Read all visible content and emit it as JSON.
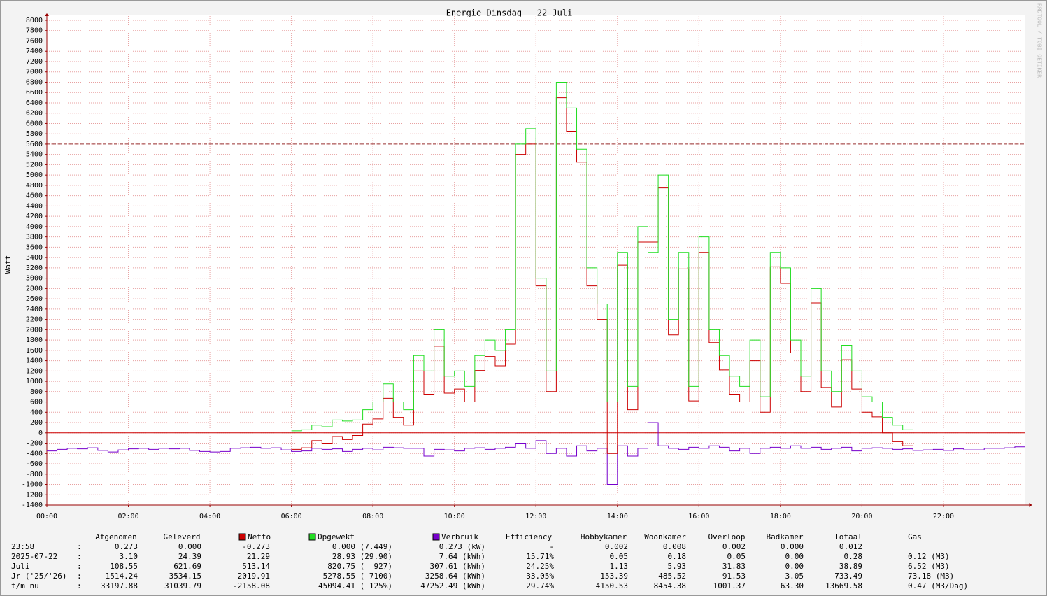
{
  "chart_data": {
    "type": "step-line",
    "title": "Energie Dinsdag   22 Juli",
    "y_label": "Watt",
    "watermark": "RRDTOOL / TOBI OETIKER",
    "xlim": [
      0,
      24
    ],
    "xticks": [
      {
        "value": 0,
        "label": "00:00"
      },
      {
        "value": 2,
        "label": "02:00"
      },
      {
        "value": 4,
        "label": "04:00"
      },
      {
        "value": 6,
        "label": "06:00"
      },
      {
        "value": 8,
        "label": "08:00"
      },
      {
        "value": 10,
        "label": "10:00"
      },
      {
        "value": 12,
        "label": "12:00"
      },
      {
        "value": 14,
        "label": "14:00"
      },
      {
        "value": 16,
        "label": "16:00"
      },
      {
        "value": 18,
        "label": "18:00"
      },
      {
        "value": 20,
        "label": "20:00"
      },
      {
        "value": 22,
        "label": "22:00"
      }
    ],
    "ylim": [
      -1400,
      8000
    ],
    "yticks": [
      -1400,
      -1200,
      -1000,
      -800,
      -600,
      -400,
      -200,
      0,
      200,
      400,
      600,
      800,
      1000,
      1200,
      1400,
      1600,
      1800,
      2000,
      2200,
      2400,
      2600,
      2800,
      3000,
      3200,
      3400,
      3600,
      3800,
      4000,
      4200,
      4400,
      4600,
      4800,
      5000,
      5200,
      5400,
      5600,
      5800,
      6000,
      6200,
      6400,
      6600,
      6800,
      7000,
      7200,
      7400,
      7600,
      7800,
      8000
    ],
    "grid": true,
    "hrule": 5600,
    "x": [
      0,
      0.25,
      0.5,
      0.75,
      1,
      1.25,
      1.5,
      1.75,
      2,
      2.25,
      2.5,
      2.75,
      3,
      3.25,
      3.5,
      3.75,
      4,
      4.25,
      4.5,
      4.75,
      5,
      5.25,
      5.5,
      5.75,
      6,
      6.25,
      6.5,
      6.75,
      7,
      7.25,
      7.5,
      7.75,
      8,
      8.25,
      8.5,
      8.75,
      9,
      9.25,
      9.5,
      9.75,
      10,
      10.25,
      10.5,
      10.75,
      11,
      11.25,
      11.5,
      11.75,
      12,
      12.25,
      12.5,
      12.75,
      13,
      13.25,
      13.5,
      13.75,
      14,
      14.25,
      14.5,
      14.75,
      15,
      15.25,
      15.5,
      15.75,
      16,
      16.25,
      16.5,
      16.75,
      17,
      17.25,
      17.5,
      17.75,
      18,
      18.25,
      18.5,
      18.75,
      19,
      19.25,
      19.5,
      19.75,
      20,
      20.25,
      20.5,
      20.75,
      21,
      21.25,
      21.5,
      21.75,
      22,
      22.25,
      22.5,
      22.75,
      23,
      23.25,
      23.5,
      23.75
    ],
    "series": [
      {
        "name": "Netto",
        "color": "#cc0000",
        "values": [
          null,
          null,
          null,
          null,
          null,
          null,
          null,
          null,
          null,
          null,
          null,
          null,
          null,
          null,
          null,
          null,
          null,
          null,
          null,
          null,
          null,
          null,
          null,
          null,
          -320,
          -290,
          -150,
          -200,
          -70,
          -130,
          -50,
          170,
          270,
          670,
          300,
          150,
          1200,
          750,
          1680,
          770,
          850,
          600,
          1210,
          1480,
          1300,
          1720,
          5400,
          5600,
          2850,
          800,
          6500,
          5850,
          5250,
          2850,
          2200,
          -400,
          3250,
          450,
          3700,
          3700,
          4750,
          1900,
          3180,
          620,
          3500,
          1750,
          1220,
          750,
          600,
          1400,
          400,
          3220,
          2900,
          1550,
          800,
          2520,
          880,
          500,
          1420,
          850,
          400,
          310,
          0,
          -170,
          -250,
          null,
          null,
          null,
          null,
          null,
          null,
          null,
          null,
          null,
          null,
          null
        ]
      },
      {
        "name": "Opgewekt",
        "color": "#22dd22",
        "values": [
          null,
          null,
          null,
          null,
          null,
          null,
          null,
          null,
          null,
          null,
          null,
          null,
          null,
          null,
          null,
          null,
          null,
          null,
          null,
          null,
          null,
          null,
          null,
          null,
          40,
          60,
          150,
          120,
          250,
          230,
          250,
          450,
          600,
          950,
          600,
          450,
          1500,
          1200,
          2000,
          1100,
          1200,
          900,
          1500,
          1800,
          1600,
          2000,
          5600,
          5900,
          3000,
          1200,
          6800,
          6300,
          5500,
          3200,
          2500,
          600,
          3500,
          900,
          4000,
          3500,
          5000,
          2200,
          3500,
          900,
          3800,
          2000,
          1500,
          1100,
          900,
          1800,
          700,
          3500,
          3200,
          1800,
          1100,
          2800,
          1200,
          800,
          1700,
          1200,
          700,
          600,
          300,
          150,
          60,
          null,
          null,
          null,
          null,
          null,
          null,
          null,
          null,
          null,
          null,
          null
        ]
      },
      {
        "name": "Verbruik",
        "color": "#7700cc",
        "values": [
          -350,
          -320,
          -300,
          -310,
          -290,
          -340,
          -370,
          -330,
          -310,
          -300,
          -320,
          -300,
          -310,
          -300,
          -340,
          -360,
          -370,
          -360,
          -300,
          -290,
          -280,
          -300,
          -290,
          -330,
          -360,
          -350,
          -300,
          -320,
          -310,
          -360,
          -320,
          -300,
          -330,
          -280,
          -290,
          -300,
          -300,
          -450,
          -320,
          -330,
          -350,
          -300,
          -290,
          -320,
          -300,
          -280,
          -200,
          -300,
          -150,
          -400,
          -300,
          -450,
          -250,
          -350,
          -300,
          -1000,
          -250,
          -450,
          -300,
          200,
          -250,
          -300,
          -320,
          -280,
          -300,
          -250,
          -280,
          -350,
          -300,
          -400,
          -300,
          -280,
          -300,
          -250,
          -300,
          -280,
          -320,
          -300,
          -280,
          -350,
          -300,
          -290,
          -300,
          -320,
          -310,
          -340,
          -330,
          -320,
          -340,
          -310,
          -330,
          -330,
          -300,
          -300,
          -290,
          -270
        ]
      }
    ]
  },
  "table": {
    "columns": [
      "Afgenomen",
      "Geleverd",
      "Efficiency",
      "Hobbykamer",
      "Woonkamer",
      "Overloop",
      "Badkamer",
      "Totaal",
      "Gas"
    ],
    "rows": [
      [
        "23:58",
        ":",
        "0.273",
        "0.000",
        "-0.273",
        "0.000 (7.449)",
        "0.273 (kW)",
        "-",
        "0.002",
        "0.008",
        "0.002",
        "0.000",
        "0.012"
      ],
      [
        "2025-07-22",
        ":",
        "3.10",
        "24.39",
        "21.29",
        "28.93 (29.90)",
        "7.64 (kWh)",
        "15.71%",
        "0.05",
        "0.18",
        "0.05",
        "0.00",
        "0.28",
        "0.12 (M3)"
      ],
      [
        "Juli",
        ":",
        "108.55",
        "621.69",
        "513.14",
        "820.75 (  927)",
        "307.61 (kWh)",
        "24.25%",
        "1.13",
        "5.93",
        "31.83",
        "0.00",
        "38.89",
        "6.52 (M3)"
      ],
      [
        "Jr ('25/'26)",
        ":",
        "1514.24",
        "3534.15",
        "2019.91",
        "5278.55 ( 7100)",
        "3258.64 (kWh)",
        "33.05%",
        "153.39",
        "485.52",
        "91.53",
        "3.05",
        "733.49",
        "73.18 (M3)"
      ],
      [
        "t/m nu",
        ":",
        "33197.88",
        "31039.79",
        "-2158.08",
        "45094.41 ( 125%)",
        "47252.49 (kWh)",
        "29.74%",
        "4150.53",
        "8454.38",
        "1001.37",
        "63.30",
        "13669.58",
        "0.47 (M3/Dag)"
      ]
    ]
  }
}
